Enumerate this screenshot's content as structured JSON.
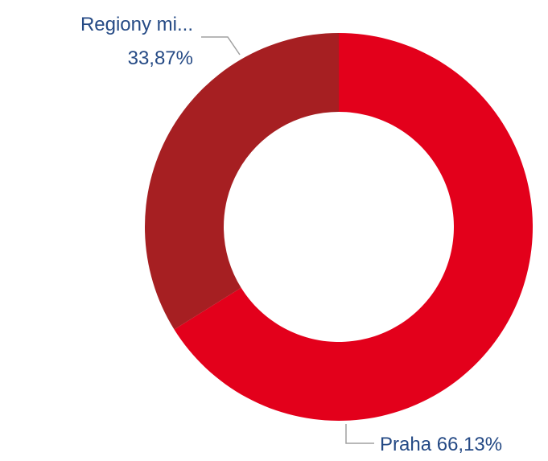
{
  "chart_data": {
    "type": "donut",
    "categories": [
      "Praha",
      "Regiony mi..."
    ],
    "values": [
      66.13,
      33.87
    ],
    "value_labels": [
      "66,13%",
      "33,87%"
    ],
    "colors": [
      "#e3001b",
      "#a61f22"
    ]
  }
}
